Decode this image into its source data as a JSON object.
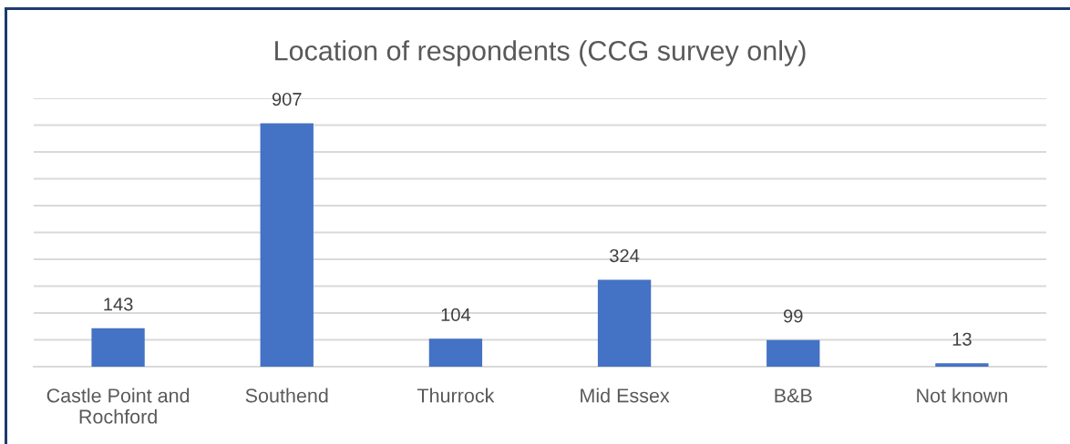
{
  "chart_data": {
    "type": "bar",
    "title": "Location of respondents (CCG survey only)",
    "categories": [
      "Castle Point and\nRochford",
      "Southend",
      "Thurrock",
      "Mid Essex",
      "B&B",
      "Not known"
    ],
    "values": [
      143,
      907,
      104,
      324,
      99,
      13
    ],
    "color": "#4472c4",
    "ylim": [
      0,
      1000
    ],
    "yticks": [
      {
        "value": 0,
        "label": null
      },
      {
        "value": 100,
        "label": null
      },
      {
        "value": 200,
        "label": null
      },
      {
        "value": 300,
        "label": null
      },
      {
        "value": 400,
        "label": null
      },
      {
        "value": 500,
        "label": null
      },
      {
        "value": 600,
        "label": null
      },
      {
        "value": 700,
        "label": null
      },
      {
        "value": 800,
        "label": null
      },
      {
        "value": 900,
        "label": null
      },
      {
        "value": 1000,
        "label": null
      }
    ],
    "grid": "y",
    "tick_labels": "x",
    "data_labels": true
  }
}
